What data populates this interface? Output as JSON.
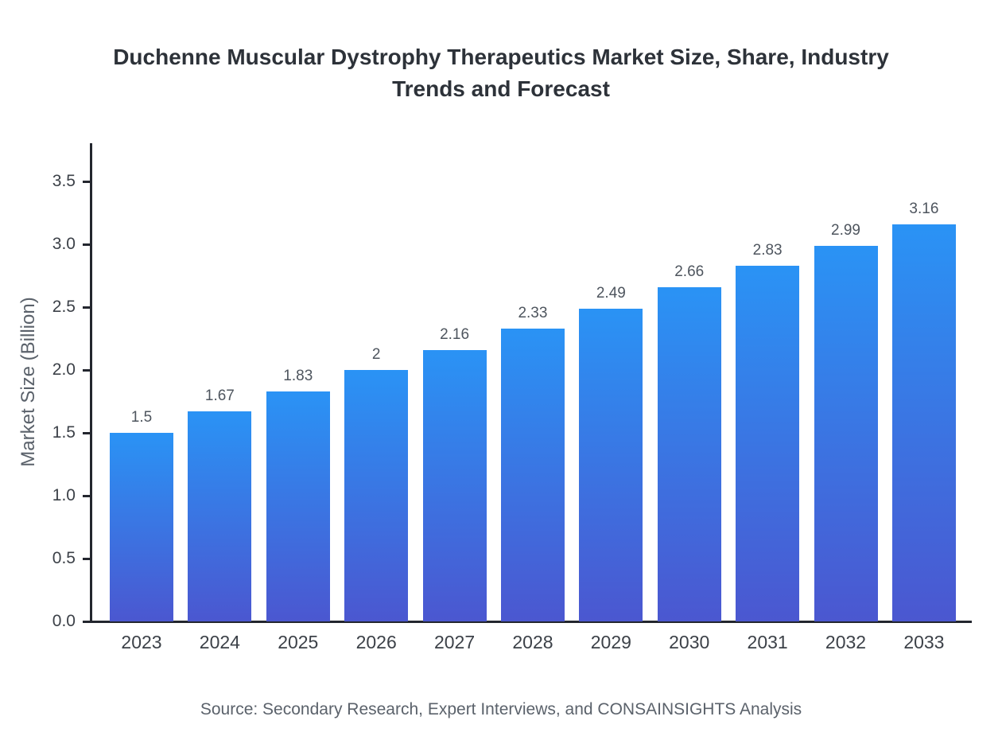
{
  "source_note": "Source: Secondary Research, Expert Interviews, and CONSAINSIGHTS Analysis",
  "colors": {
    "bar_gradient_top": "#2a93f5",
    "bar_gradient_bottom": "#4b57d0",
    "axis": "#23262e",
    "tick_label": "#3c4148",
    "value_label": "#4e555e",
    "title": "#2d3239",
    "muted": "#5b626b"
  },
  "chart_data": {
    "type": "bar",
    "title": "Duchenne Muscular Dystrophy Therapeutics Market Size, Share, Industry Trends and Forecast",
    "xlabel": "",
    "ylabel": "Market Size (Billion)",
    "categories": [
      "2023",
      "2024",
      "2025",
      "2026",
      "2027",
      "2028",
      "2029",
      "2030",
      "2031",
      "2032",
      "2033"
    ],
    "values": [
      1.5,
      1.67,
      1.83,
      2,
      2.16,
      2.33,
      2.49,
      2.66,
      2.83,
      2.99,
      3.16
    ],
    "value_labels": [
      "1.5",
      "1.67",
      "1.83",
      "2",
      "2.16",
      "2.33",
      "2.49",
      "2.66",
      "2.83",
      "2.99",
      "3.16"
    ],
    "ylim": [
      0,
      3.8
    ],
    "yticks": [
      0.0,
      0.5,
      1.0,
      1.5,
      2.0,
      2.5,
      3.0,
      3.5
    ],
    "ytick_labels": [
      "0.0",
      "0.5",
      "1.0",
      "1.5",
      "2.0",
      "2.5",
      "3.0",
      "3.5"
    ],
    "grid": false,
    "legend": false,
    "bar_color_gradient": [
      "#2a93f5",
      "#4b57d0"
    ]
  }
}
